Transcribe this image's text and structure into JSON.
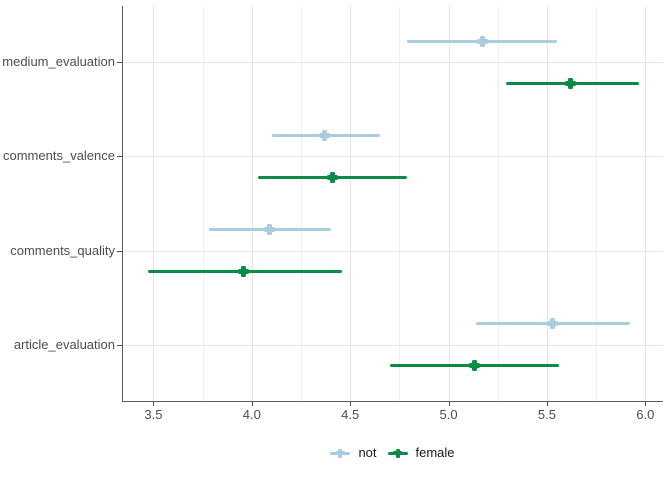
{
  "chart_data": {
    "type": "scatter",
    "variant": "horizontal-pointrange-dodged",
    "title": "",
    "xlabel": "",
    "ylabel": "",
    "categories": [
      "medium_evaluation",
      "comments_valence",
      "comments_quality",
      "article_evaluation"
    ],
    "xlim": [
      3.34,
      6.09
    ],
    "x_ticks_major": [
      3.5,
      4.0,
      4.5,
      5.0,
      5.5,
      6.0
    ],
    "x_ticks_minor": [
      3.75,
      4.25,
      4.75,
      5.25,
      5.75
    ],
    "grid": "vertical major+minor, horizontal major at each category",
    "legend_position": "bottom-center",
    "series": [
      {
        "name": "not",
        "color": "#a9cce0",
        "points": [
          {
            "category": "medium_evaluation",
            "mean": 5.17,
            "low": 4.79,
            "high": 5.55
          },
          {
            "category": "comments_valence",
            "mean": 4.37,
            "low": 4.1,
            "high": 4.65
          },
          {
            "category": "comments_quality",
            "mean": 4.09,
            "low": 3.78,
            "high": 4.4
          },
          {
            "category": "article_evaluation",
            "mean": 5.53,
            "low": 5.14,
            "high": 5.92
          }
        ]
      },
      {
        "name": "female",
        "color": "#0b8b45",
        "points": [
          {
            "category": "medium_evaluation",
            "mean": 5.62,
            "low": 5.29,
            "high": 5.97
          },
          {
            "category": "comments_valence",
            "mean": 4.41,
            "low": 4.03,
            "high": 4.79
          },
          {
            "category": "comments_quality",
            "mean": 3.96,
            "low": 3.47,
            "high": 4.46
          },
          {
            "category": "article_evaluation",
            "mean": 5.13,
            "low": 4.7,
            "high": 5.56
          }
        ]
      }
    ],
    "colors": {
      "axis_line": "#5c5c5c",
      "tick_mark": "#4d4d4d",
      "axis_text": "#4d4d4d",
      "legend_text": "#1a1a1a",
      "grid_major": "#e5e5e5",
      "grid_minor": "#f0f0f0",
      "background": "#ffffff"
    }
  },
  "legend": {
    "items": [
      {
        "label": "not"
      },
      {
        "label": "female"
      }
    ]
  }
}
